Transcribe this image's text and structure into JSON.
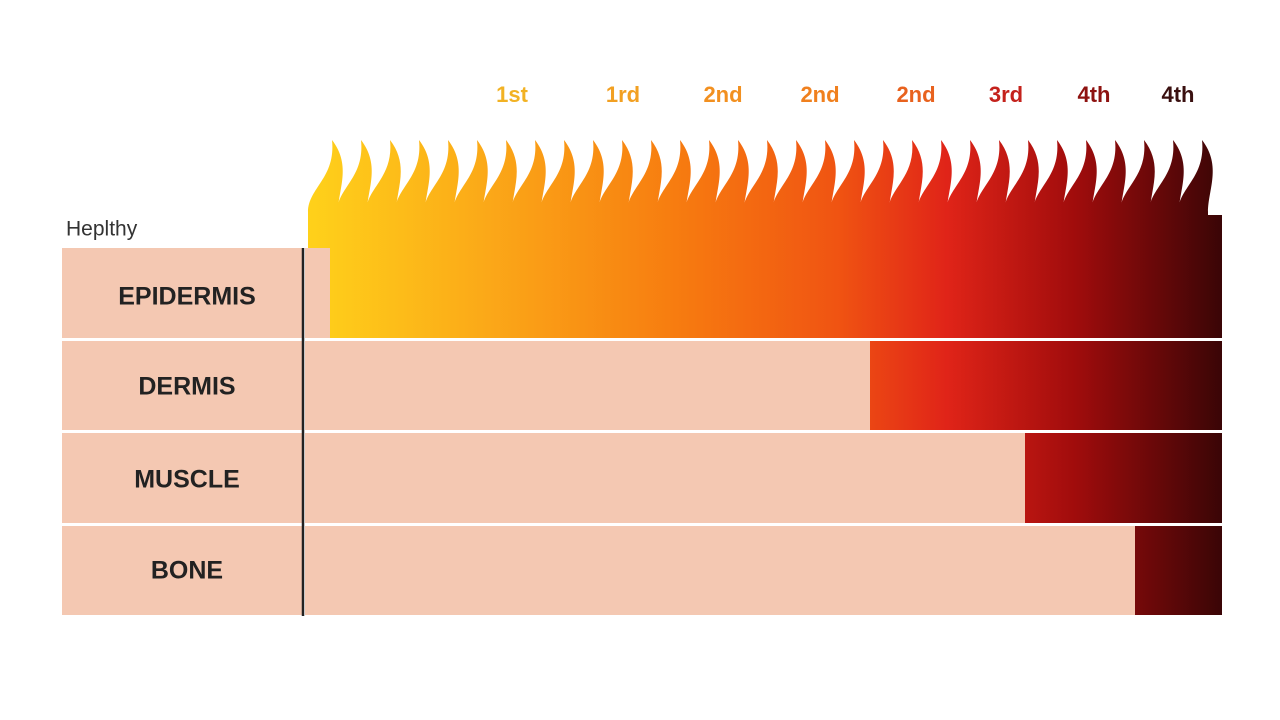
{
  "healthy_label": "Heplthy",
  "degree_labels": [
    "1st",
    "1rd",
    "2nd",
    "2nd",
    "2nd",
    "3rd",
    "4th",
    "4th"
  ],
  "layers": [
    "EPIDERMIS",
    "DERMIS",
    "MUSCLE",
    "BONE"
  ]
}
